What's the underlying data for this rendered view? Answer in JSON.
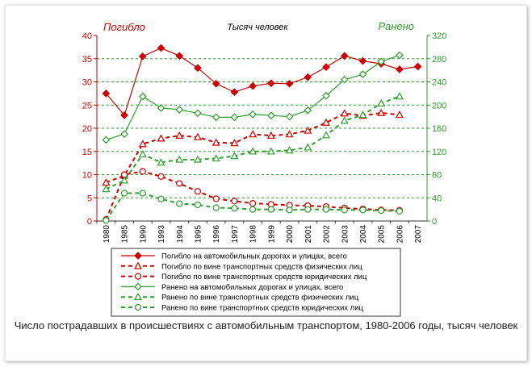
{
  "chart_data": {
    "type": "line",
    "title": "Тысяч человек",
    "left_axis_label": "Погибло",
    "right_axis_label": "Ранено",
    "categories": [
      "1980",
      "1985",
      "1990",
      "1993",
      "1994",
      "1995",
      "1996",
      "1997",
      "1998",
      "1999",
      "2000",
      "2001",
      "2002",
      "2003",
      "2004",
      "2005",
      "2006",
      "2007"
    ],
    "left_axis": {
      "min": 0,
      "max": 40,
      "step": 5,
      "ticks": [
        "0",
        "5",
        "10",
        "15",
        "20",
        "25",
        "30",
        "35",
        "40"
      ]
    },
    "right_axis": {
      "min": 0,
      "max": 320,
      "step": 40,
      "ticks": [
        "0",
        "40",
        "80",
        "120",
        "160",
        "200",
        "240",
        "280",
        "320"
      ]
    },
    "grid": true,
    "colors": {
      "killed": "#cc0000",
      "injured": "#2e9e2e",
      "left_axis_text": "#cc0000",
      "right_axis_text": "#2e9e2e",
      "grid": "#2e9e2e"
    },
    "series": [
      {
        "name": "Погибло на автомобильных дорогах и улицах, всего",
        "axis": "left",
        "color": "#cc0000",
        "style": "solid",
        "marker": "diamond-filled",
        "values": [
          27.5,
          22.8,
          35.5,
          37.3,
          35.6,
          33.0,
          29.6,
          27.8,
          29.1,
          29.7,
          29.6,
          31.0,
          33.2,
          35.6,
          34.5,
          33.9,
          32.7,
          33.3
        ]
      },
      {
        "name": "Погибло по вине транспортных средств физических лиц",
        "axis": "left",
        "color": "#cc0000",
        "style": "dashed",
        "marker": "triangle-open",
        "values": [
          8.3,
          9.8,
          16.6,
          17.8,
          18.4,
          18.1,
          16.9,
          16.8,
          18.7,
          18.4,
          18.7,
          19.5,
          21.2,
          23.2,
          22.7,
          23.3,
          22.9,
          null
        ]
      },
      {
        "name": "Погибло по вине транспортных средств юридических лиц",
        "axis": "left",
        "color": "#cc0000",
        "style": "dashed",
        "marker": "circle-open",
        "values": [
          0.3,
          10.0,
          10.7,
          9.6,
          8.1,
          6.4,
          4.8,
          4.3,
          3.8,
          3.6,
          3.4,
          3.3,
          3.1,
          2.8,
          2.6,
          2.4,
          2.3,
          null
        ]
      },
      {
        "name": "Ранено на автомобильных дорогах и улицах, всего",
        "axis": "right",
        "color": "#2e9e2e",
        "style": "solid",
        "marker": "diamond-open",
        "values": [
          140,
          150,
          215,
          195,
          192,
          186,
          179,
          179,
          184,
          182,
          180,
          191,
          216,
          244,
          253,
          275,
          286,
          null
        ]
      },
      {
        "name": "Ранено по вине транспортных средств физических лиц",
        "axis": "right",
        "color": "#2e9e2e",
        "style": "dashed",
        "marker": "triangle-open",
        "values": [
          55,
          70,
          115,
          101,
          106,
          106,
          108,
          112,
          120,
          120,
          122,
          127,
          148,
          173,
          183,
          203,
          215,
          null
        ]
      },
      {
        "name": "Ранено по вине транспортных средств юридических лиц",
        "axis": "right",
        "color": "#2e9e2e",
        "style": "dashed",
        "marker": "circle-open",
        "values": [
          1,
          48,
          48,
          38,
          30,
          28,
          23,
          22,
          20,
          20,
          19,
          20,
          20,
          19,
          19,
          18,
          17,
          null
        ]
      }
    ]
  },
  "caption": "Число пострадавших в происшествиях с автомобильным транспортом, 1980-2006 годы, тысяч человек"
}
